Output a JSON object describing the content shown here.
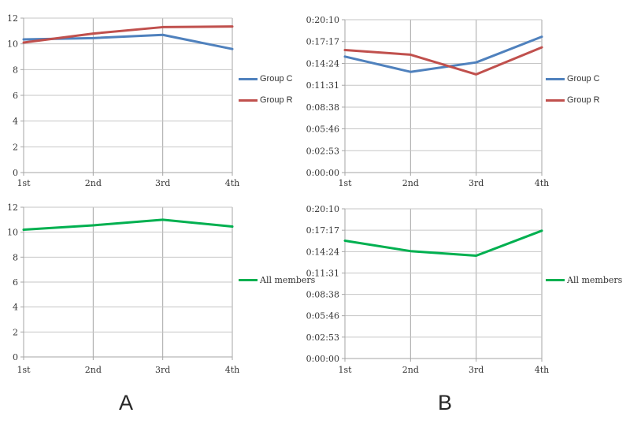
{
  "page": {
    "background": "#ffffff"
  },
  "captions": {
    "a": "A",
    "b": "B"
  },
  "colors": {
    "group_c": "#4F81BD",
    "group_r": "#C0504D",
    "all_members": "#00B050",
    "h_gridline": "#C6C6C6",
    "v_gridline": "#A6A6A6",
    "axis": "#A6A6A6",
    "tick_text": "#333333"
  },
  "chart_data": [
    {
      "id": "panel-a-groups",
      "panel": "A",
      "type": "line",
      "title": "",
      "xlabel": "",
      "ylabel": "",
      "categories": [
        "1st",
        "2nd",
        "3rd",
        "4th"
      ],
      "ylim": [
        0,
        12
      ],
      "grid": true,
      "legend_position": "right",
      "legend_font": "sans",
      "yticks": [
        {
          "v": 0,
          "label": "0"
        },
        {
          "v": 2,
          "label": "2"
        },
        {
          "v": 4,
          "label": "4"
        },
        {
          "v": 6,
          "label": "6"
        },
        {
          "v": 8,
          "label": "8"
        },
        {
          "v": 10,
          "label": "10"
        },
        {
          "v": 12,
          "label": "12"
        }
      ],
      "series": [
        {
          "name": "Group C",
          "color": "#4F81BD",
          "values": [
            10.35,
            10.45,
            10.7,
            9.6
          ]
        },
        {
          "name": "Group R",
          "color": "#C0504D",
          "values": [
            10.1,
            10.8,
            11.3,
            11.35
          ]
        }
      ]
    },
    {
      "id": "panel-b-groups",
      "panel": "B",
      "type": "line",
      "title": "",
      "xlabel": "",
      "ylabel": "",
      "categories": [
        "1st",
        "2nd",
        "3rd",
        "4th"
      ],
      "ylim": [
        0,
        1210
      ],
      "unit": "seconds (h:mm:ss axis)",
      "grid": true,
      "legend_position": "right",
      "legend_font": "sans",
      "yticks": [
        {
          "v": 0,
          "label": "0:00:00"
        },
        {
          "v": 173,
          "label": "0:02:53"
        },
        {
          "v": 346,
          "label": "0:05:46"
        },
        {
          "v": 518,
          "label": "0:08:38"
        },
        {
          "v": 691,
          "label": "0:11:31"
        },
        {
          "v": 864,
          "label": "0:14:24"
        },
        {
          "v": 1037,
          "label": "0:17:17"
        },
        {
          "v": 1210,
          "label": "0:20:10"
        }
      ],
      "series": [
        {
          "name": "Group C",
          "color": "#4F81BD",
          "values": [
            918,
            797,
            872,
            1075
          ]
        },
        {
          "name": "Group R",
          "color": "#C0504D",
          "values": [
            970,
            933,
            777,
            991
          ]
        }
      ]
    },
    {
      "id": "panel-a-all",
      "panel": "A",
      "type": "line",
      "title": "",
      "xlabel": "",
      "ylabel": "",
      "categories": [
        "1st",
        "2nd",
        "3rd",
        "4th"
      ],
      "ylim": [
        0,
        12
      ],
      "grid": true,
      "legend_position": "right",
      "legend_font": "serif",
      "yticks": [
        {
          "v": 0,
          "label": "0"
        },
        {
          "v": 2,
          "label": "2"
        },
        {
          "v": 4,
          "label": "4"
        },
        {
          "v": 6,
          "label": "6"
        },
        {
          "v": 8,
          "label": "8"
        },
        {
          "v": 10,
          "label": "10"
        },
        {
          "v": 12,
          "label": "12"
        }
      ],
      "series": [
        {
          "name": "All members",
          "color": "#00B050",
          "values": [
            10.2,
            10.55,
            11.0,
            10.45
          ]
        }
      ]
    },
    {
      "id": "panel-b-all",
      "panel": "B",
      "type": "line",
      "title": "",
      "xlabel": "",
      "ylabel": "",
      "categories": [
        "1st",
        "2nd",
        "3rd",
        "4th"
      ],
      "ylim": [
        0,
        1210
      ],
      "unit": "seconds (h:mm:ss axis)",
      "grid": true,
      "legend_position": "right",
      "legend_font": "serif",
      "yticks": [
        {
          "v": 0,
          "label": "0:00:00"
        },
        {
          "v": 173,
          "label": "0:02:53"
        },
        {
          "v": 346,
          "label": "0:05:46"
        },
        {
          "v": 518,
          "label": "0:08:38"
        },
        {
          "v": 691,
          "label": "0:11:31"
        },
        {
          "v": 864,
          "label": "0:14:24"
        },
        {
          "v": 1037,
          "label": "0:17:17"
        },
        {
          "v": 1210,
          "label": "0:20:10"
        }
      ],
      "series": [
        {
          "name": "All members",
          "color": "#00B050",
          "values": [
            952,
            868,
            831,
            1033
          ]
        }
      ]
    }
  ]
}
